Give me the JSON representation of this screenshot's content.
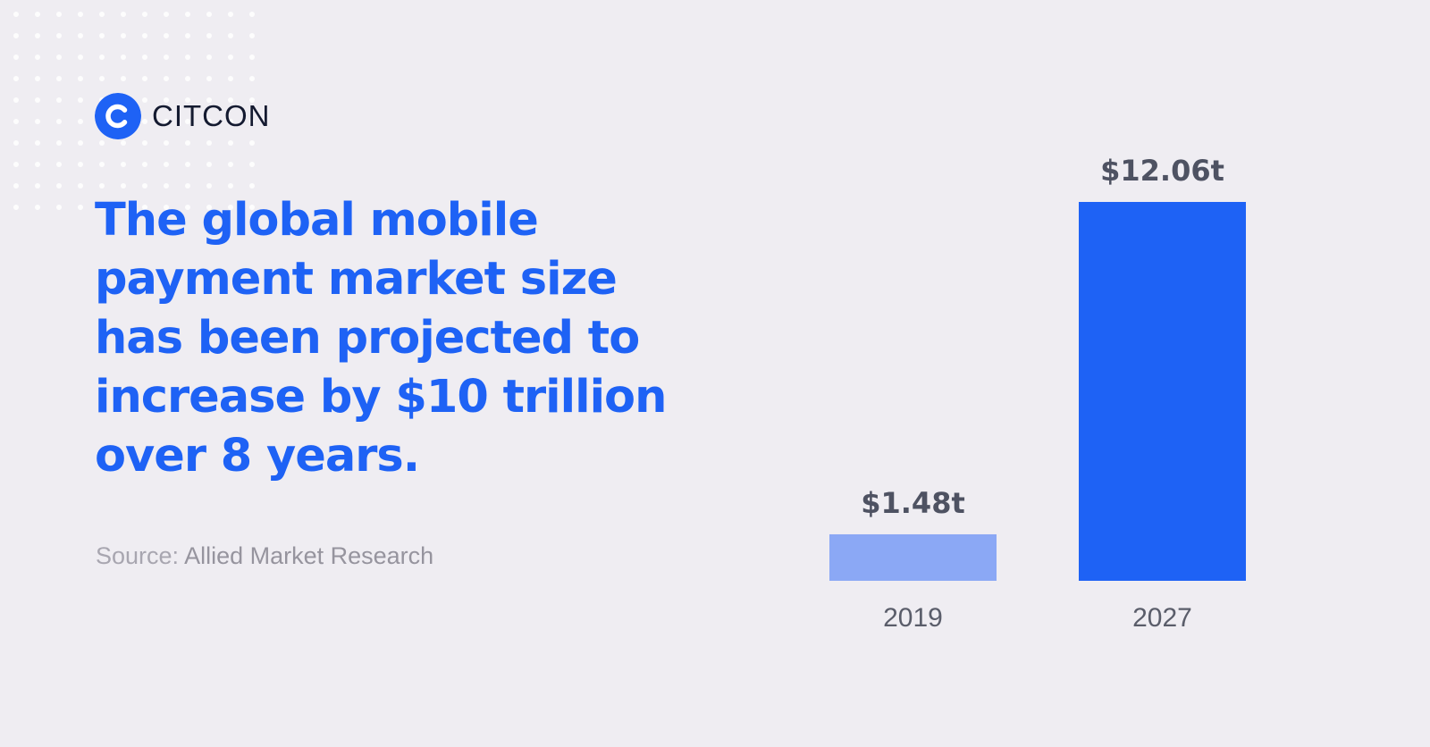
{
  "brand": {
    "name": "CITCON",
    "logo_icon": "citcon-c-logo-icon"
  },
  "headline": "The global mobile payment market size has been projected to increase by $10 trillion over 8 years.",
  "source": {
    "prefix": "Source:",
    "name": "Allied Market Research"
  },
  "colors": {
    "background": "#efedf2",
    "accent": "#1e62f5",
    "bar_light": "#8ba8f5",
    "bar_dark": "#1e62f5",
    "value_label": "#4e5262",
    "axis_label": "#5a5d6a"
  },
  "chart_data": {
    "type": "bar",
    "categories": [
      "2019",
      "2027"
    ],
    "values": [
      1.48,
      12.06
    ],
    "data_labels": [
      "$1.48t",
      "$12.06t"
    ],
    "title": "",
    "xlabel": "",
    "ylabel": "",
    "ylim": [
      0,
      12.06
    ],
    "grid": false,
    "legend": "none"
  }
}
